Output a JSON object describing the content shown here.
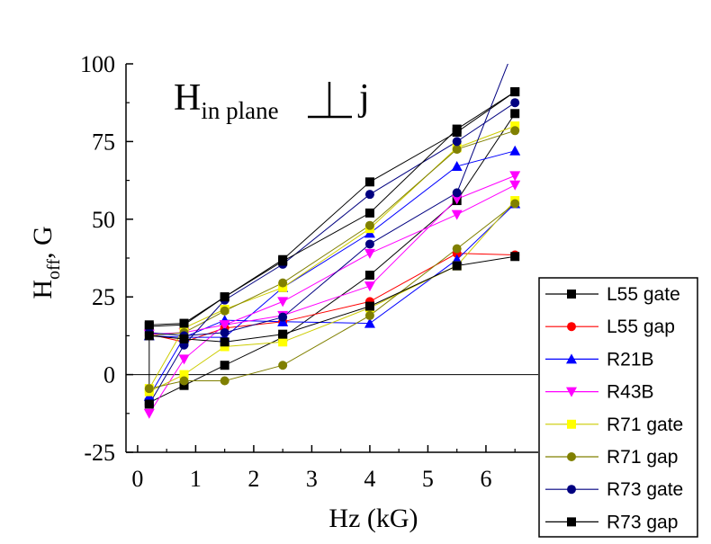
{
  "chart_data": {
    "type": "line",
    "xlabel": "Hz (kG)",
    "ylabel_main": "H",
    "ylabel_sub": "off",
    "ylabel_tail": ", G",
    "annotation": {
      "main": "H",
      "sub": "in plane",
      "tail": "j"
    },
    "xlim": [
      -0.2,
      6.9
    ],
    "ylim": [
      -25,
      100
    ],
    "xticks": [
      0,
      1,
      2,
      3,
      4,
      5,
      6
    ],
    "yticks": [
      -25,
      0,
      25,
      50,
      75,
      100
    ],
    "legend_position": "bottom-right",
    "series": [
      {
        "name": "L55 gate",
        "color": "#000000",
        "line_color": "#000000",
        "marker": "square",
        "groups": [
          {
            "x": [
              0.2,
              0.8,
              1.5,
              2.5,
              4.0,
              5.5,
              6.5
            ],
            "y": [
              15.5,
              16,
              25,
              37,
              62,
              78,
              91
            ]
          },
          {
            "x": [
              0.2,
              0.8,
              1.5,
              2.5,
              4.0,
              5.5,
              6.5
            ],
            "y": [
              -9,
              -3.5,
              3,
              12,
              32,
              56,
              84
            ]
          }
        ]
      },
      {
        "name": "L55 gap",
        "color": "#ff0000",
        "line_color": "#ff0000",
        "marker": "circle",
        "groups": [
          {
            "x": [
              0.2,
              0.8,
              1.5,
              2.5,
              4.0,
              5.5,
              6.5
            ],
            "y": [
              13,
              10.5,
              15,
              17,
              23.5,
              39,
              38.5
            ]
          }
        ]
      },
      {
        "name": "R21B",
        "color": "#0000ff",
        "line_color": "#0000ff",
        "marker": "triangle-up",
        "groups": [
          {
            "x": [
              0.2,
              0.8,
              1.5,
              2.5,
              4.0,
              5.5,
              6.5
            ],
            "y": [
              12.5,
              12,
              17.5,
              17,
              16.5,
              37,
              55
            ]
          },
          {
            "x": [
              0.2,
              0.8,
              1.5,
              2.5,
              4.0,
              5.5,
              6.5
            ],
            "y": [
              -7,
              12,
              12,
              28,
              45.5,
              67,
              72
            ]
          }
        ]
      },
      {
        "name": "R43B",
        "color": "#ff00ff",
        "line_color": "#ff00ff",
        "marker": "triangle-down",
        "groups": [
          {
            "x": [
              0.2,
              0.8,
              1.5,
              2.5,
              4.0,
              5.5,
              6.5
            ],
            "y": [
              -12.5,
              5,
              16,
              23.5,
              39,
              51.5,
              61
            ]
          },
          {
            "x": [
              0.2,
              0.8,
              1.5,
              2.5,
              4.0,
              5.5,
              6.5
            ],
            "y": [
              13,
              13.5,
              16,
              19,
              28.5,
              56.5,
              64
            ]
          }
        ]
      },
      {
        "name": "R71 gate",
        "color": "#ffff00",
        "line_color": "#cccc00",
        "marker": "square",
        "groups": [
          {
            "x": [
              0.2,
              0.8,
              1.5,
              2.5,
              4.0,
              5.5,
              6.5
            ],
            "y": [
              -5.5,
              0,
              9,
              10.5,
              21.5,
              35,
              56
            ]
          },
          {
            "x": [
              0.2,
              0.8,
              1.5,
              2.5,
              4.0,
              5.5,
              6.5
            ],
            "y": [
              -4.5,
              15,
              21,
              28,
              47,
              73,
              80
            ]
          }
        ]
      },
      {
        "name": "R71 gap",
        "color": "#808000",
        "line_color": "#808000",
        "marker": "circle",
        "groups": [
          {
            "x": [
              0.2,
              0.8,
              1.5,
              2.5,
              4.0,
              5.5,
              6.5
            ],
            "y": [
              -4.5,
              -2,
              -2,
              3,
              19,
              40.5,
              55
            ]
          },
          {
            "x": [
              0.2,
              0.8,
              1.5,
              2.5,
              4.0,
              5.5,
              6.5
            ],
            "y": [
              12.5,
              13.5,
              20.5,
              29.5,
              48,
              72.5,
              78.5
            ]
          }
        ]
      },
      {
        "name": "R73 gate",
        "color": "#000080",
        "line_color": "#000080",
        "marker": "circle",
        "groups": [
          {
            "x": [
              0.2,
              0.8,
              1.5,
              2.5,
              4.0,
              5.5,
              6.5
            ],
            "y": [
              -9.5,
              9.5,
              24,
              35.5,
              58,
              75,
              87.5
            ]
          },
          {
            "x": [
              0.2,
              0.8,
              1.5,
              2.5,
              4.0,
              5.5,
              6.4
            ],
            "y": [
              13.5,
              12.5,
              13.5,
              18.5,
              42,
              58.5,
              101
            ]
          }
        ]
      },
      {
        "name": "R73 gap",
        "color": "#000000",
        "line_color": "#000000",
        "marker": "square",
        "groups": [
          {
            "x": [
              0.2,
              0.2,
              0.8,
              1.5,
              2.5,
              4.0,
              5.5,
              6.5
            ],
            "y": [
              -9.5,
              16,
              16.5,
              25,
              36.5,
              52,
              79,
              91
            ]
          },
          {
            "x": [
              0.2,
              0.8,
              1.5,
              2.5,
              4.0,
              5.5,
              6.5
            ],
            "y": [
              12.5,
              11.5,
              10.5,
              13,
              22,
              35,
              38
            ]
          }
        ]
      }
    ]
  }
}
